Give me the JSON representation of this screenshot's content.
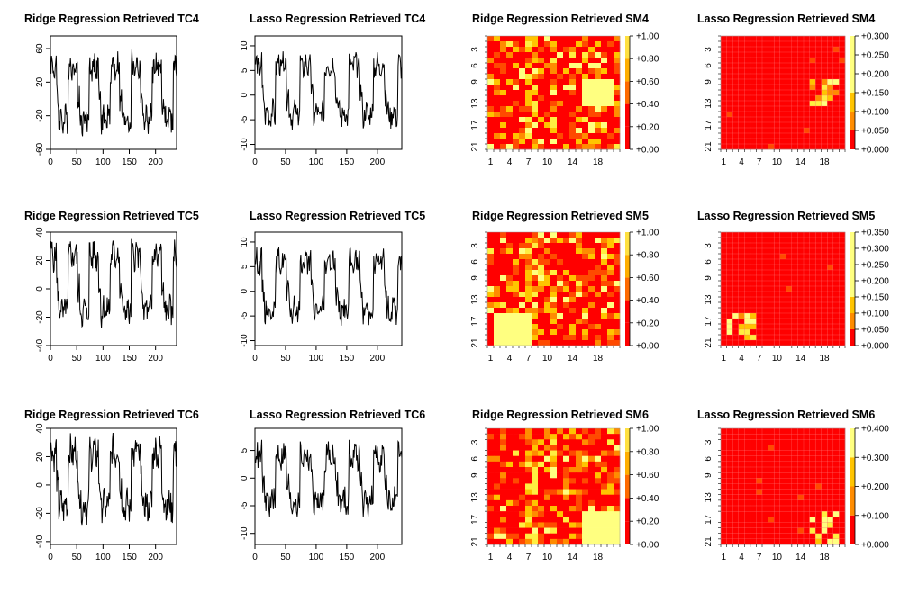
{
  "chart_data": [
    {
      "id": "ridge-tc4",
      "type": "line",
      "title": "Ridge Regression Retrieved TC4",
      "xlim": [
        0,
        240
      ],
      "ylim": [
        -60,
        75
      ],
      "xticks": [
        0,
        50,
        100,
        150,
        200
      ],
      "yticks": [
        -60,
        -20,
        20,
        60
      ],
      "ytick_labels": [
        "-60",
        "-20",
        "20",
        "60"
      ],
      "n": 240,
      "period": 40,
      "amp": 45,
      "offset": 0,
      "noise": 14,
      "seed": 4
    },
    {
      "id": "lasso-tc4",
      "type": "line",
      "title": "Lasso Regression Retrieved TC4",
      "xlim": [
        0,
        240
      ],
      "ylim": [
        -11,
        12
      ],
      "xticks": [
        0,
        50,
        100,
        150,
        200
      ],
      "yticks": [
        -10,
        -5,
        0,
        5,
        10
      ],
      "ytick_labels": [
        "-10",
        "-5",
        "0",
        "5",
        "10"
      ],
      "n": 240,
      "period": 40,
      "amp": 7,
      "offset": 0,
      "noise": 2.2,
      "seed": 14
    },
    {
      "id": "ridge-sm4",
      "type": "heatmap",
      "title": "Ridge Regression Retrieved SM4",
      "rows": 21,
      "cols": 21,
      "xticks": [
        1,
        4,
        7,
        10,
        14,
        18
      ],
      "yticks": [
        3,
        6,
        9,
        13,
        17,
        21
      ],
      "legend_labels": [
        "+0.00",
        "+0.20",
        "+0.40",
        "+0.60",
        "+0.80",
        "+1.00"
      ],
      "max": 1.0,
      "kind": "ridge",
      "blobs": [
        {
          "r0": 8,
          "r1": 12,
          "c0": 15,
          "c1": 19
        }
      ],
      "seed": 24
    },
    {
      "id": "lasso-sm4",
      "type": "heatmap",
      "title": "Lasso Regression Retrieved SM4",
      "rows": 21,
      "cols": 21,
      "xticks": [
        1,
        4,
        7,
        10,
        14,
        18
      ],
      "yticks": [
        3,
        6,
        9,
        13,
        17,
        21
      ],
      "legend_labels": [
        "+0.000",
        "+0.050",
        "+0.100",
        "+0.150",
        "+0.200",
        "+0.250",
        "+0.300"
      ],
      "max": 0.3,
      "kind": "lasso",
      "blobs": [
        {
          "r0": 8,
          "r1": 12,
          "c0": 15,
          "c1": 19
        }
      ],
      "seed": 34
    },
    {
      "id": "ridge-tc5",
      "type": "line",
      "title": "Ridge Regression Retrieved TC5",
      "xlim": [
        0,
        240
      ],
      "ylim": [
        -40,
        40
      ],
      "xticks": [
        0,
        50,
        100,
        150,
        200
      ],
      "yticks": [
        -40,
        -20,
        0,
        20,
        40
      ],
      "ytick_labels": [
        "-40",
        "-20",
        "0",
        "20",
        "40"
      ],
      "n": 240,
      "period": 40,
      "amp": 28,
      "offset": 0,
      "noise": 9,
      "seed": 5
    },
    {
      "id": "lasso-tc5",
      "type": "line",
      "title": "Lasso Regression Retrieved TC5",
      "xlim": [
        0,
        240
      ],
      "ylim": [
        -11,
        12
      ],
      "xticks": [
        0,
        50,
        100,
        150,
        200
      ],
      "yticks": [
        -10,
        -5,
        0,
        5,
        10
      ],
      "ytick_labels": [
        "-10",
        "-5",
        "0",
        "5",
        "10"
      ],
      "n": 240,
      "period": 40,
      "amp": 7,
      "offset": 0,
      "noise": 2.2,
      "seed": 15
    },
    {
      "id": "ridge-sm5",
      "type": "heatmap",
      "title": "Ridge Regression Retrieved SM5",
      "rows": 21,
      "cols": 21,
      "xticks": [
        1,
        4,
        7,
        10,
        14,
        18
      ],
      "yticks": [
        3,
        6,
        9,
        13,
        17,
        21
      ],
      "legend_labels": [
        "+0.00",
        "+0.20",
        "+0.40",
        "+0.60",
        "+0.80",
        "+1.00"
      ],
      "max": 1.0,
      "kind": "ridge",
      "blobs": [
        {
          "r0": 15,
          "r1": 20,
          "c0": 1,
          "c1": 6
        }
      ],
      "seed": 25
    },
    {
      "id": "lasso-sm5",
      "type": "heatmap",
      "title": "Lasso Regression Retrieved SM5",
      "rows": 21,
      "cols": 21,
      "xticks": [
        1,
        4,
        7,
        10,
        14,
        18
      ],
      "yticks": [
        3,
        6,
        9,
        13,
        17,
        21
      ],
      "legend_labels": [
        "+0.000",
        "+0.050",
        "+0.100",
        "+0.150",
        "+0.200",
        "+0.250",
        "+0.300",
        "+0.350"
      ],
      "max": 0.35,
      "kind": "lasso",
      "blobs": [
        {
          "r0": 15,
          "r1": 19,
          "c0": 1,
          "c1": 5
        }
      ],
      "seed": 35
    },
    {
      "id": "ridge-tc6",
      "type": "line",
      "title": "Ridge Regression Retrieved TC6",
      "xlim": [
        0,
        240
      ],
      "ylim": [
        -42,
        40
      ],
      "xticks": [
        0,
        50,
        100,
        150,
        200
      ],
      "yticks": [
        -40,
        -20,
        0,
        20,
        40
      ],
      "ytick_labels": [
        "-40",
        "-20",
        "0",
        "20",
        "40"
      ],
      "n": 240,
      "period": 40,
      "amp": 27,
      "offset": 0,
      "noise": 10,
      "seed": 6
    },
    {
      "id": "lasso-tc6",
      "type": "line",
      "title": "Lasso Regression Retrieved TC6",
      "xlim": [
        0,
        240
      ],
      "ylim": [
        -12,
        9
      ],
      "xticks": [
        0,
        50,
        100,
        150,
        200
      ],
      "yticks": [
        -10,
        -5,
        0,
        5
      ],
      "ytick_labels": [
        "-10",
        "-5",
        "0",
        "5"
      ],
      "n": 240,
      "period": 40,
      "amp": 6,
      "offset": -1,
      "noise": 2.3,
      "seed": 16
    },
    {
      "id": "ridge-sm6",
      "type": "heatmap",
      "title": "Ridge Regression Retrieved SM6",
      "rows": 21,
      "cols": 21,
      "xticks": [
        1,
        4,
        7,
        10,
        14,
        18
      ],
      "yticks": [
        3,
        6,
        9,
        13,
        17,
        21
      ],
      "legend_labels": [
        "+0.00",
        "+0.20",
        "+0.40",
        "+0.60",
        "+0.80",
        "+1.00"
      ],
      "max": 1.0,
      "kind": "ridge",
      "blobs": [
        {
          "r0": 15,
          "r1": 20,
          "c0": 15,
          "c1": 20
        }
      ],
      "seed": 26
    },
    {
      "id": "lasso-sm6",
      "type": "heatmap",
      "title": "Lasso Regression Retrieved SM6",
      "rows": 21,
      "cols": 21,
      "xticks": [
        1,
        4,
        7,
        10,
        14,
        18
      ],
      "yticks": [
        3,
        6,
        9,
        13,
        17,
        21
      ],
      "legend_labels": [
        "+0.000",
        "+0.100",
        "+0.200",
        "+0.300",
        "+0.400"
      ],
      "max": 0.4,
      "kind": "lasso",
      "blobs": [
        {
          "r0": 15,
          "r1": 20,
          "c0": 15,
          "c1": 19
        }
      ],
      "seed": 36
    }
  ]
}
